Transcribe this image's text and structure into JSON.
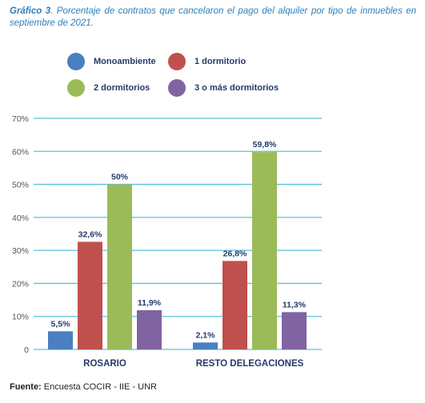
{
  "caption": {
    "label": "Gráfico 3",
    "text": ". Porcentaje de contratos que cancelaron el pago del alquiler por tipo de inmuebles en septiembre de 2021."
  },
  "chart_data": {
    "type": "bar",
    "categories": [
      "ROSARIO",
      "RESTO DELEGACIONES"
    ],
    "series": [
      {
        "name": "Monoambiente",
        "color": "#4a7fc1",
        "values": [
          5.5,
          2.1
        ],
        "labels": [
          "5,5%",
          "2,1%"
        ]
      },
      {
        "name": "1 dormitorio",
        "color": "#c0504d",
        "values": [
          32.6,
          26.8
        ],
        "labels": [
          "32,6%",
          "26,8%"
        ]
      },
      {
        "name": "2 dormitorios",
        "color": "#9bbb59",
        "values": [
          50,
          59.8
        ],
        "labels": [
          "50%",
          "59,8%"
        ]
      },
      {
        "name": "3 o más dormitorios",
        "color": "#8064a2",
        "values": [
          11.9,
          11.3
        ],
        "labels": [
          "11,9%",
          "11,3%"
        ]
      }
    ],
    "y_ticks": [
      {
        "value": 0,
        "label": "0"
      },
      {
        "value": 10,
        "label": "10%"
      },
      {
        "value": 20,
        "label": "20%"
      },
      {
        "value": 30,
        "label": "30%"
      },
      {
        "value": 40,
        "label": "40%"
      },
      {
        "value": 50,
        "label": "50%"
      },
      {
        "value": 60,
        "label": "60%"
      },
      {
        "value": 70,
        "label": "70%"
      }
    ],
    "ylim": [
      0,
      70
    ],
    "grid": true,
    "grid_color": "#5bc0de",
    "legend_position": "top",
    "title": "",
    "xlabel": "",
    "ylabel": ""
  },
  "source": {
    "label": "Fuente:",
    "text": " Encuesta COCIR - IIE - UNR"
  }
}
